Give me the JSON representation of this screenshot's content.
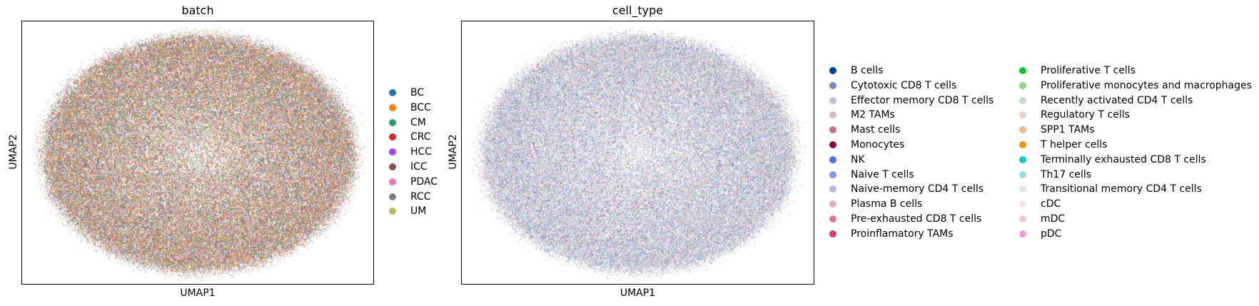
{
  "chart_data": [
    {
      "type": "scatter",
      "title": "batch",
      "xlabel": "UMAP1",
      "ylabel": "UMAP2",
      "grid": false,
      "ticks": false,
      "legend_placement": "right",
      "series": [
        {
          "name": "BC",
          "color": "#1f77b4"
        },
        {
          "name": "BCC",
          "color": "#ff7f0e"
        },
        {
          "name": "CM",
          "color": "#279e68"
        },
        {
          "name": "CRC",
          "color": "#d62728"
        },
        {
          "name": "HCC",
          "color": "#aa40fc"
        },
        {
          "name": "ICC",
          "color": "#8c564b"
        },
        {
          "name": "PDAC",
          "color": "#e377c2"
        },
        {
          "name": "RCC",
          "color": "#7f7f7f"
        },
        {
          "name": "UM",
          "color": "#b5bd61"
        }
      ]
    },
    {
      "type": "scatter",
      "title": "cell_type",
      "xlabel": "UMAP1",
      "ylabel": "UMAP2",
      "grid": false,
      "ticks": false,
      "legend_placement": "right",
      "series": [
        {
          "name": "B cells",
          "color": "#023fa5"
        },
        {
          "name": "Cytotoxic CD8 T cells",
          "color": "#7d87b9"
        },
        {
          "name": "Effector memory CD8 T cells",
          "color": "#bec1d4"
        },
        {
          "name": "M2 TAMs",
          "color": "#d6bcc0"
        },
        {
          "name": "Mast cells",
          "color": "#bb7784"
        },
        {
          "name": "Monocytes",
          "color": "#8e063b"
        },
        {
          "name": "NK",
          "color": "#4a6fe3"
        },
        {
          "name": "Naive T cells",
          "color": "#8595e1"
        },
        {
          "name": "Naive-memory CD4 T cells",
          "color": "#b5bbe3"
        },
        {
          "name": "Plasma B cells",
          "color": "#e6afb9"
        },
        {
          "name": "Pre-exhausted CD8 T cells",
          "color": "#e07b91"
        },
        {
          "name": "Proinflamatory TAMs",
          "color": "#d33f6a"
        },
        {
          "name": "Proliferative T cells",
          "color": "#11c638"
        },
        {
          "name": "Proliferative monocytes and macrophages",
          "color": "#8dd593"
        },
        {
          "name": "Recently activated CD4 T cells",
          "color": "#c6dec7"
        },
        {
          "name": "Regulatory T cells",
          "color": "#ead3c6"
        },
        {
          "name": "SPP1 TAMs",
          "color": "#f0b98d"
        },
        {
          "name": "T helper cells",
          "color": "#ef9708"
        },
        {
          "name": "Terminally exhausted CD8 T cells",
          "color": "#0fcfc0"
        },
        {
          "name": "Th17 cells",
          "color": "#9cded6"
        },
        {
          "name": "Transitional memory CD4 T cells",
          "color": "#d5eae7"
        },
        {
          "name": "cDC",
          "color": "#f3e1eb"
        },
        {
          "name": "mDC",
          "color": "#f6c4e1"
        },
        {
          "name": "pDC",
          "color": "#f79cd4"
        }
      ]
    }
  ]
}
